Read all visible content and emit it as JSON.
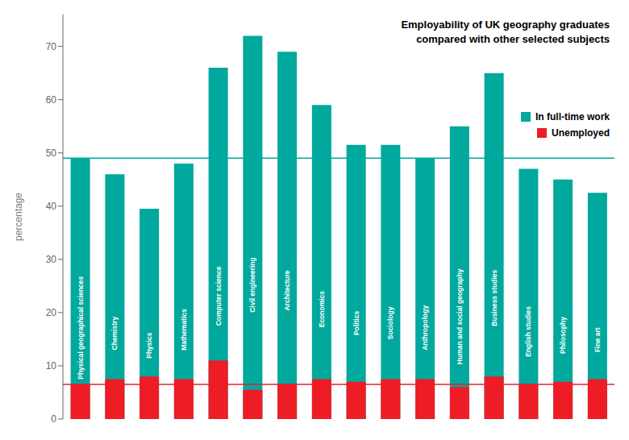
{
  "chart_data": {
    "type": "bar",
    "title": "Employability of UK geography graduates",
    "subtitle": "compared with other selected subjects",
    "categories": [
      "Physical geographical sciences",
      "Chemistry",
      "Physics",
      "Mathematics",
      "Computer science",
      "Civil engineering",
      "Architecture",
      "Economics",
      "Politics",
      "Sociology",
      "Anthropology",
      "Human and social geography",
      "Business studies",
      "English studies",
      "Philosophy",
      "Fine art"
    ],
    "series": [
      {
        "name": "In full-time work",
        "color": "#00A89D",
        "values": [
          49,
          46,
          39.5,
          48,
          66,
          72,
          69,
          59,
          51.5,
          51.5,
          49,
          55,
          65,
          47,
          45,
          42.5
        ]
      },
      {
        "name": "Unemployed",
        "color": "#EE1C25",
        "values": [
          6.5,
          7.5,
          8,
          7.5,
          11,
          5.5,
          6.5,
          7.5,
          7,
          7.5,
          7.5,
          6,
          8,
          6.5,
          7,
          7.5
        ]
      }
    ],
    "reference_lines": [
      {
        "value": 49,
        "color": "#00A89D"
      },
      {
        "value": 6.5,
        "color": "#EE1C25"
      }
    ],
    "ylabel": "percentage",
    "ylim": [
      0,
      76
    ],
    "yticks": [
      0,
      10,
      20,
      30,
      40,
      50,
      60,
      70
    ],
    "grid": false,
    "legend": "upper right",
    "tick_labels": "y"
  }
}
